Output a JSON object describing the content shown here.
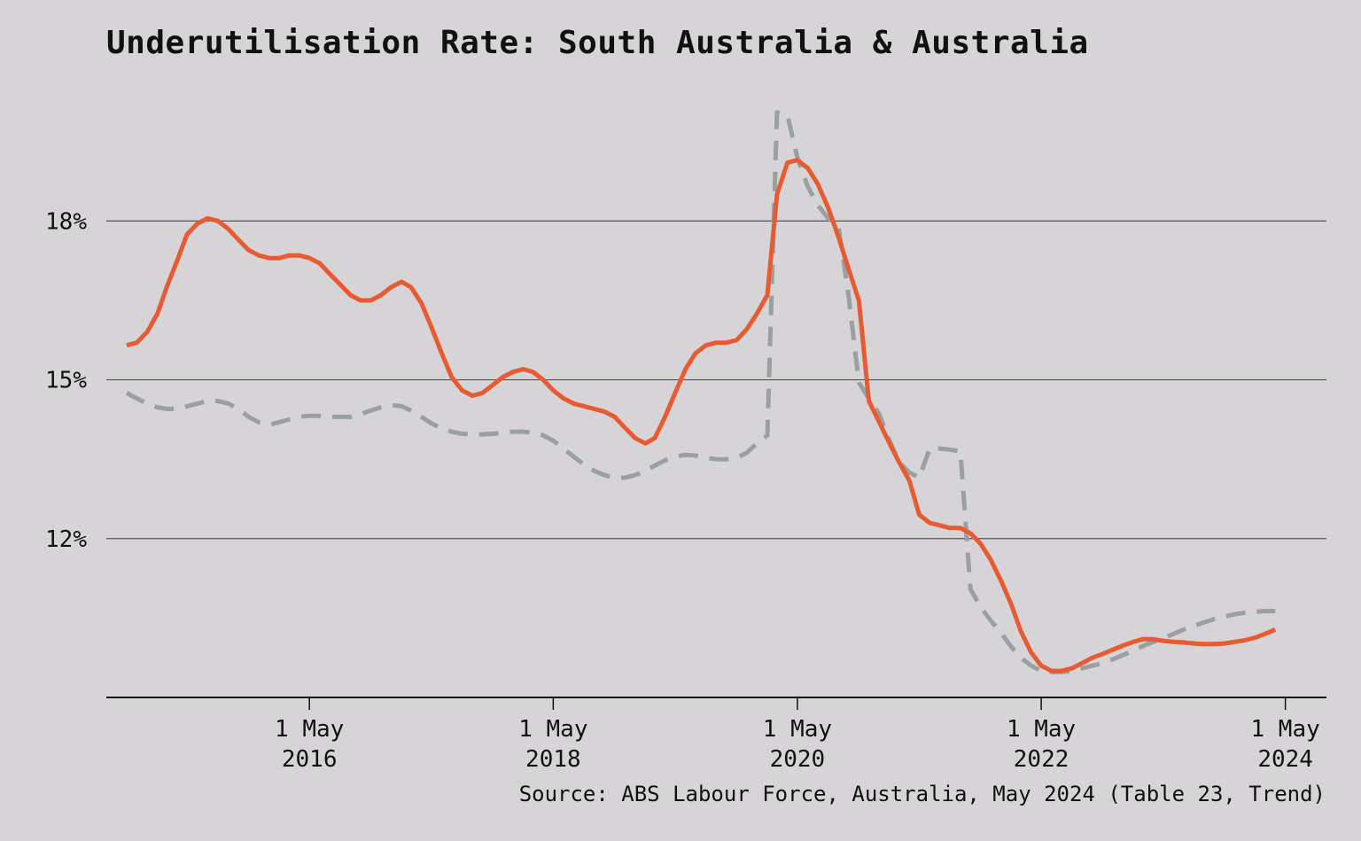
{
  "title": "Underutilisation Rate: South Australia & Australia",
  "source": "Source: ABS Labour Force, Australia, May 2024 (Table 23, Trend)",
  "chart_data": {
    "type": "line",
    "title": "Underutilisation Rate: South Australia & Australia",
    "xlabel": "",
    "ylabel": "",
    "ylim": [
      9.0,
      20.5
    ],
    "yticks": [
      {
        "value": 12,
        "label": "12%"
      },
      {
        "value": 15,
        "label": "15%"
      },
      {
        "value": 18,
        "label": "18%"
      }
    ],
    "xlim": [
      "2014-09-01",
      "2024-09-01"
    ],
    "xticks": [
      {
        "date": "2016-05-01",
        "line1": "1 May",
        "line2": "2016"
      },
      {
        "date": "2018-05-01",
        "line1": "1 May",
        "line2": "2018"
      },
      {
        "date": "2020-05-01",
        "line1": "1 May",
        "line2": "2020"
      },
      {
        "date": "2022-05-01",
        "line1": "1 May",
        "line2": "2022"
      },
      {
        "date": "2024-05-01",
        "line1": "1 May",
        "line2": "2024"
      }
    ],
    "grid": "horizontal",
    "series": [
      {
        "color": "#e85a32",
        "style": "solid",
        "points": [
          [
            "2014-11-01",
            15.65
          ],
          [
            "2014-12-01",
            15.7
          ],
          [
            "2015-01-01",
            15.9
          ],
          [
            "2015-02-01",
            16.25
          ],
          [
            "2015-03-01",
            16.75
          ],
          [
            "2015-04-01",
            17.25
          ],
          [
            "2015-05-01",
            17.75
          ],
          [
            "2015-06-01",
            17.95
          ],
          [
            "2015-07-01",
            18.05
          ],
          [
            "2015-08-01",
            18.0
          ],
          [
            "2015-09-01",
            17.85
          ],
          [
            "2015-10-01",
            17.65
          ],
          [
            "2015-11-01",
            17.45
          ],
          [
            "2015-12-01",
            17.35
          ],
          [
            "2016-01-01",
            17.3
          ],
          [
            "2016-02-01",
            17.3
          ],
          [
            "2016-03-01",
            17.35
          ],
          [
            "2016-04-01",
            17.35
          ],
          [
            "2016-05-01",
            17.3
          ],
          [
            "2016-06-01",
            17.2
          ],
          [
            "2016-07-01",
            17.0
          ],
          [
            "2016-08-01",
            16.8
          ],
          [
            "2016-09-01",
            16.6
          ],
          [
            "2016-10-01",
            16.5
          ],
          [
            "2016-11-01",
            16.5
          ],
          [
            "2016-12-01",
            16.6
          ],
          [
            "2017-01-01",
            16.75
          ],
          [
            "2017-02-01",
            16.85
          ],
          [
            "2017-03-01",
            16.75
          ],
          [
            "2017-04-01",
            16.45
          ],
          [
            "2017-05-01",
            16.0
          ],
          [
            "2017-06-01",
            15.5
          ],
          [
            "2017-07-01",
            15.05
          ],
          [
            "2017-08-01",
            14.8
          ],
          [
            "2017-09-01",
            14.7
          ],
          [
            "2017-10-01",
            14.75
          ],
          [
            "2017-11-01",
            14.9
          ],
          [
            "2017-12-01",
            15.05
          ],
          [
            "2018-01-01",
            15.15
          ],
          [
            "2018-02-01",
            15.2
          ],
          [
            "2018-03-01",
            15.15
          ],
          [
            "2018-04-01",
            15.0
          ],
          [
            "2018-05-01",
            14.8
          ],
          [
            "2018-06-01",
            14.65
          ],
          [
            "2018-07-01",
            14.55
          ],
          [
            "2018-08-01",
            14.5
          ],
          [
            "2018-09-01",
            14.45
          ],
          [
            "2018-10-01",
            14.4
          ],
          [
            "2018-11-01",
            14.3
          ],
          [
            "2018-12-01",
            14.1
          ],
          [
            "2019-01-01",
            13.9
          ],
          [
            "2019-02-01",
            13.8
          ],
          [
            "2019-03-01",
            13.9
          ],
          [
            "2019-04-01",
            14.3
          ],
          [
            "2019-05-01",
            14.75
          ],
          [
            "2019-06-01",
            15.2
          ],
          [
            "2019-07-01",
            15.5
          ],
          [
            "2019-08-01",
            15.65
          ],
          [
            "2019-09-01",
            15.7
          ],
          [
            "2019-10-01",
            15.7
          ],
          [
            "2019-11-01",
            15.75
          ],
          [
            "2019-12-01",
            15.95
          ],
          [
            "2020-01-01",
            16.25
          ],
          [
            "2020-02-01",
            16.6
          ],
          [
            "2020-03-01",
            18.5
          ],
          [
            "2020-04-01",
            19.1
          ],
          [
            "2020-05-01",
            19.15
          ],
          [
            "2020-06-01",
            19.0
          ],
          [
            "2020-07-01",
            18.7
          ],
          [
            "2020-08-01",
            18.25
          ],
          [
            "2020-09-01",
            17.7
          ],
          [
            "2020-10-01",
            17.1
          ],
          [
            "2020-11-01",
            16.5
          ],
          [
            "2020-12-01",
            14.6
          ],
          [
            "2021-01-01",
            14.2
          ],
          [
            "2021-02-01",
            13.8
          ],
          [
            "2021-03-01",
            13.45
          ],
          [
            "2021-04-01",
            13.1
          ],
          [
            "2021-05-01",
            12.45
          ],
          [
            "2021-06-01",
            12.3
          ],
          [
            "2021-07-01",
            12.25
          ],
          [
            "2021-08-01",
            12.2
          ],
          [
            "2021-09-01",
            12.2
          ],
          [
            "2021-10-01",
            12.1
          ],
          [
            "2021-11-01",
            11.9
          ],
          [
            "2021-12-01",
            11.6
          ],
          [
            "2022-01-01",
            11.2
          ],
          [
            "2022-02-01",
            10.75
          ],
          [
            "2022-03-01",
            10.25
          ],
          [
            "2022-04-01",
            9.85
          ],
          [
            "2022-05-01",
            9.6
          ],
          [
            "2022-06-01",
            9.5
          ],
          [
            "2022-07-01",
            9.5
          ],
          [
            "2022-08-01",
            9.55
          ],
          [
            "2022-09-01",
            9.65
          ],
          [
            "2022-10-01",
            9.75
          ],
          [
            "2022-11-01",
            9.82
          ],
          [
            "2022-12-01",
            9.9
          ],
          [
            "2023-01-01",
            9.98
          ],
          [
            "2023-02-01",
            10.05
          ],
          [
            "2023-03-01",
            10.1
          ],
          [
            "2023-04-01",
            10.1
          ],
          [
            "2023-05-01",
            10.07
          ],
          [
            "2023-06-01",
            10.05
          ],
          [
            "2023-07-01",
            10.04
          ],
          [
            "2023-08-01",
            10.02
          ],
          [
            "2023-09-01",
            10.01
          ],
          [
            "2023-10-01",
            10.01
          ],
          [
            "2023-11-01",
            10.02
          ],
          [
            "2023-12-01",
            10.05
          ],
          [
            "2024-01-01",
            10.08
          ],
          [
            "2024-02-01",
            10.13
          ],
          [
            "2024-03-01",
            10.2
          ],
          [
            "2024-04-01",
            10.28
          ]
        ]
      },
      {
        "color": "#98a0a0",
        "style": "dashed",
        "points": [
          [
            "2014-11-01",
            14.75
          ],
          [
            "2014-12-01",
            14.65
          ],
          [
            "2015-01-01",
            14.55
          ],
          [
            "2015-02-01",
            14.48
          ],
          [
            "2015-03-01",
            14.45
          ],
          [
            "2015-04-01",
            14.45
          ],
          [
            "2015-05-01",
            14.5
          ],
          [
            "2015-06-01",
            14.55
          ],
          [
            "2015-07-01",
            14.6
          ],
          [
            "2015-08-01",
            14.6
          ],
          [
            "2015-09-01",
            14.55
          ],
          [
            "2015-10-01",
            14.45
          ],
          [
            "2015-11-01",
            14.3
          ],
          [
            "2015-12-01",
            14.2
          ],
          [
            "2016-01-01",
            14.15
          ],
          [
            "2016-02-01",
            14.2
          ],
          [
            "2016-03-01",
            14.25
          ],
          [
            "2016-04-01",
            14.3
          ],
          [
            "2016-05-01",
            14.32
          ],
          [
            "2016-06-01",
            14.32
          ],
          [
            "2016-07-01",
            14.3
          ],
          [
            "2016-08-01",
            14.3
          ],
          [
            "2016-09-01",
            14.3
          ],
          [
            "2016-10-01",
            14.35
          ],
          [
            "2016-11-01",
            14.42
          ],
          [
            "2016-12-01",
            14.48
          ],
          [
            "2017-01-01",
            14.52
          ],
          [
            "2017-02-01",
            14.5
          ],
          [
            "2017-03-01",
            14.42
          ],
          [
            "2017-04-01",
            14.3
          ],
          [
            "2017-05-01",
            14.18
          ],
          [
            "2017-06-01",
            14.08
          ],
          [
            "2017-07-01",
            14.02
          ],
          [
            "2017-08-01",
            13.98
          ],
          [
            "2017-09-01",
            13.97
          ],
          [
            "2017-10-01",
            13.97
          ],
          [
            "2017-11-01",
            13.98
          ],
          [
            "2017-12-01",
            14.0
          ],
          [
            "2018-01-01",
            14.02
          ],
          [
            "2018-02-01",
            14.02
          ],
          [
            "2018-03-01",
            14.0
          ],
          [
            "2018-04-01",
            13.95
          ],
          [
            "2018-05-01",
            13.85
          ],
          [
            "2018-06-01",
            13.7
          ],
          [
            "2018-07-01",
            13.55
          ],
          [
            "2018-08-01",
            13.4
          ],
          [
            "2018-09-01",
            13.28
          ],
          [
            "2018-10-01",
            13.2
          ],
          [
            "2018-11-01",
            13.15
          ],
          [
            "2018-12-01",
            13.15
          ],
          [
            "2019-01-01",
            13.2
          ],
          [
            "2019-02-01",
            13.28
          ],
          [
            "2019-03-01",
            13.38
          ],
          [
            "2019-04-01",
            13.48
          ],
          [
            "2019-05-01",
            13.55
          ],
          [
            "2019-06-01",
            13.58
          ],
          [
            "2019-07-01",
            13.57
          ],
          [
            "2019-08-01",
            13.53
          ],
          [
            "2019-09-01",
            13.5
          ],
          [
            "2019-10-01",
            13.5
          ],
          [
            "2019-11-01",
            13.52
          ],
          [
            "2019-12-01",
            13.62
          ],
          [
            "2020-01-01",
            13.8
          ],
          [
            "2020-02-01",
            13.95
          ],
          [
            "2020-03-01",
            20.05
          ],
          [
            "2020-04-01",
            20.0
          ],
          [
            "2020-05-01",
            19.2
          ],
          [
            "2020-06-01",
            18.65
          ],
          [
            "2020-07-01",
            18.3
          ],
          [
            "2020-08-01",
            18.05
          ],
          [
            "2020-09-01",
            17.9
          ],
          [
            "2020-10-01",
            16.6
          ],
          [
            "2020-11-01",
            14.95
          ],
          [
            "2020-12-01",
            14.65
          ],
          [
            "2021-01-01",
            14.35
          ],
          [
            "2021-02-01",
            13.85
          ],
          [
            "2021-03-01",
            13.45
          ],
          [
            "2021-04-01",
            13.25
          ],
          [
            "2021-05-01",
            13.15
          ],
          [
            "2021-06-01",
            13.7
          ],
          [
            "2021-07-01",
            13.7
          ],
          [
            "2021-08-01",
            13.68
          ],
          [
            "2021-09-01",
            13.65
          ],
          [
            "2021-10-01",
            11.05
          ],
          [
            "2021-11-01",
            10.7
          ],
          [
            "2021-12-01",
            10.45
          ],
          [
            "2022-01-01",
            10.22
          ],
          [
            "2022-02-01",
            9.95
          ],
          [
            "2022-03-01",
            9.75
          ],
          [
            "2022-04-01",
            9.6
          ],
          [
            "2022-05-01",
            9.5
          ],
          [
            "2022-06-01",
            9.48
          ],
          [
            "2022-07-01",
            9.48
          ],
          [
            "2022-08-01",
            9.5
          ],
          [
            "2022-09-01",
            9.55
          ],
          [
            "2022-10-01",
            9.6
          ],
          [
            "2022-11-01",
            9.65
          ],
          [
            "2022-12-01",
            9.72
          ],
          [
            "2023-01-01",
            9.8
          ],
          [
            "2023-02-01",
            9.88
          ],
          [
            "2023-03-01",
            9.97
          ],
          [
            "2023-04-01",
            10.05
          ],
          [
            "2023-05-01",
            10.12
          ],
          [
            "2023-06-01",
            10.2
          ],
          [
            "2023-07-01",
            10.28
          ],
          [
            "2023-08-01",
            10.35
          ],
          [
            "2023-09-01",
            10.42
          ],
          [
            "2023-10-01",
            10.48
          ],
          [
            "2023-11-01",
            10.53
          ],
          [
            "2023-12-01",
            10.57
          ],
          [
            "2024-01-01",
            10.6
          ],
          [
            "2024-02-01",
            10.62
          ],
          [
            "2024-03-01",
            10.63
          ],
          [
            "2024-04-01",
            10.63
          ]
        ]
      }
    ]
  }
}
